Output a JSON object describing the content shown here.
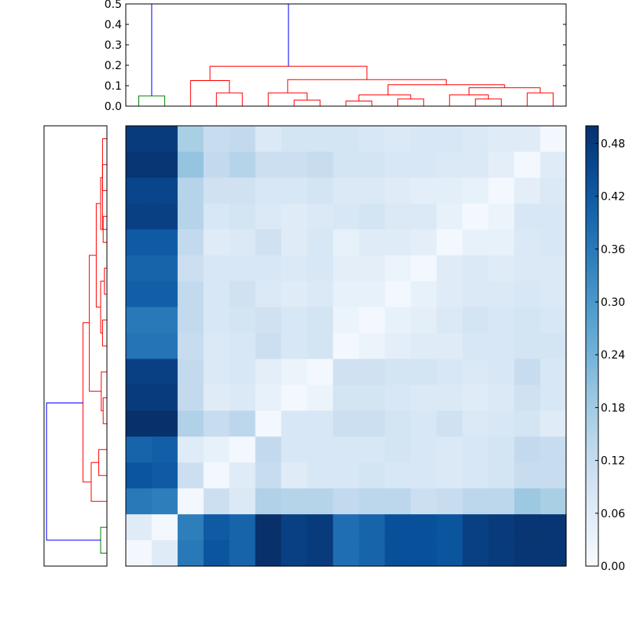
{
  "chart_data": {
    "type": "heatmap",
    "title": "",
    "colormap": "Blues",
    "matrix": [
      [
        0.48,
        0.48,
        0.17,
        0.12,
        0.13,
        0.07,
        0.09,
        0.09,
        0.09,
        0.08,
        0.07,
        0.08,
        0.08,
        0.07,
        0.06,
        0.06,
        0.01
      ],
      [
        0.49,
        0.49,
        0.2,
        0.13,
        0.15,
        0.11,
        0.11,
        0.12,
        0.09,
        0.09,
        0.08,
        0.08,
        0.07,
        0.07,
        0.05,
        0.01,
        0.06
      ],
      [
        0.46,
        0.46,
        0.15,
        0.1,
        0.1,
        0.08,
        0.08,
        0.09,
        0.07,
        0.07,
        0.06,
        0.05,
        0.05,
        0.04,
        0.01,
        0.05,
        0.07
      ],
      [
        0.47,
        0.47,
        0.15,
        0.08,
        0.09,
        0.07,
        0.06,
        0.07,
        0.08,
        0.09,
        0.07,
        0.07,
        0.04,
        0.01,
        0.03,
        0.08,
        0.08
      ],
      [
        0.42,
        0.42,
        0.13,
        0.06,
        0.07,
        0.1,
        0.06,
        0.08,
        0.04,
        0.06,
        0.06,
        0.05,
        0.01,
        0.04,
        0.04,
        0.07,
        0.08
      ],
      [
        0.4,
        0.4,
        0.11,
        0.08,
        0.08,
        0.08,
        0.07,
        0.08,
        0.05,
        0.05,
        0.03,
        0.01,
        0.06,
        0.07,
        0.06,
        0.07,
        0.07
      ],
      [
        0.41,
        0.41,
        0.13,
        0.08,
        0.1,
        0.07,
        0.06,
        0.07,
        0.04,
        0.04,
        0.01,
        0.04,
        0.06,
        0.07,
        0.07,
        0.08,
        0.07
      ],
      [
        0.36,
        0.36,
        0.13,
        0.08,
        0.09,
        0.1,
        0.08,
        0.09,
        0.03,
        0.01,
        0.04,
        0.05,
        0.07,
        0.09,
        0.08,
        0.09,
        0.08
      ],
      [
        0.37,
        0.37,
        0.12,
        0.07,
        0.08,
        0.11,
        0.08,
        0.09,
        0.01,
        0.03,
        0.05,
        0.06,
        0.06,
        0.08,
        0.08,
        0.09,
        0.09
      ],
      [
        0.47,
        0.47,
        0.13,
        0.07,
        0.08,
        0.05,
        0.03,
        0.01,
        0.1,
        0.1,
        0.09,
        0.09,
        0.08,
        0.07,
        0.08,
        0.12,
        0.08
      ],
      [
        0.48,
        0.48,
        0.13,
        0.06,
        0.07,
        0.04,
        0.01,
        0.03,
        0.09,
        0.09,
        0.08,
        0.07,
        0.07,
        0.06,
        0.07,
        0.1,
        0.08
      ],
      [
        0.5,
        0.5,
        0.16,
        0.12,
        0.14,
        0.01,
        0.08,
        0.08,
        0.11,
        0.11,
        0.09,
        0.08,
        0.1,
        0.07,
        0.08,
        0.09,
        0.06
      ],
      [
        0.4,
        0.41,
        0.06,
        0.04,
        0.01,
        0.13,
        0.08,
        0.08,
        0.08,
        0.08,
        0.09,
        0.08,
        0.07,
        0.08,
        0.09,
        0.13,
        0.12
      ],
      [
        0.43,
        0.42,
        0.11,
        0.01,
        0.06,
        0.12,
        0.06,
        0.08,
        0.08,
        0.09,
        0.08,
        0.08,
        0.07,
        0.08,
        0.09,
        0.12,
        0.12
      ],
      [
        0.36,
        0.35,
        0.01,
        0.11,
        0.07,
        0.16,
        0.15,
        0.15,
        0.13,
        0.14,
        0.14,
        0.11,
        0.12,
        0.14,
        0.14,
        0.19,
        0.17
      ],
      [
        0.06,
        0.01,
        0.35,
        0.42,
        0.4,
        0.5,
        0.47,
        0.48,
        0.38,
        0.4,
        0.44,
        0.44,
        0.43,
        0.47,
        0.48,
        0.49,
        0.49
      ],
      [
        0.01,
        0.06,
        0.36,
        0.43,
        0.4,
        0.5,
        0.47,
        0.48,
        0.38,
        0.4,
        0.44,
        0.44,
        0.43,
        0.47,
        0.48,
        0.49,
        0.49
      ]
    ],
    "vmin": 0.0,
    "vmax": 0.5,
    "colorbar": {
      "ticks": [
        "0.00",
        "0.06",
        "0.12",
        "0.18",
        "0.24",
        "0.30",
        "0.36",
        "0.42",
        "0.48"
      ]
    },
    "top_dendrogram": {
      "ylim": [
        0,
        0.5
      ],
      "yticks": [
        "0.0",
        "0.1",
        "0.2",
        "0.3",
        "0.4",
        "0.5"
      ],
      "links": [
        {
          "a": 0,
          "b": 1,
          "h": 0.05,
          "ha": 0,
          "hb": 0,
          "color": "#008000"
        },
        {
          "a": 3,
          "b": 4,
          "h": 0.065,
          "ha": 0,
          "hb": 0,
          "color": "#ff0000"
        },
        {
          "a": 2,
          "b": 3.5,
          "h": 0.125,
          "ha": 0,
          "hb": 0.065,
          "color": "#ff0000"
        },
        {
          "a": 6,
          "b": 7,
          "h": 0.03,
          "ha": 0,
          "hb": 0,
          "color": "#ff0000"
        },
        {
          "a": 5,
          "b": 6.5,
          "h": 0.065,
          "ha": 0,
          "hb": 0.03,
          "color": "#ff0000"
        },
        {
          "a": 8,
          "b": 9,
          "h": 0.025,
          "ha": 0,
          "hb": 0,
          "color": "#ff0000"
        },
        {
          "a": 10,
          "b": 11,
          "h": 0.035,
          "ha": 0,
          "hb": 0,
          "color": "#ff0000"
        },
        {
          "a": 8.5,
          "b": 10.5,
          "h": 0.055,
          "ha": 0.025,
          "hb": 0.035,
          "color": "#ff0000"
        },
        {
          "a": 13,
          "b": 14,
          "h": 0.035,
          "ha": 0,
          "hb": 0,
          "color": "#ff0000"
        },
        {
          "a": 12,
          "b": 13.5,
          "h": 0.055,
          "ha": 0,
          "hb": 0.035,
          "color": "#ff0000"
        },
        {
          "a": 15,
          "b": 16,
          "h": 0.065,
          "ha": 0,
          "hb": 0,
          "color": "#ff0000"
        },
        {
          "a": 12.75,
          "b": 15.5,
          "h": 0.09,
          "ha": 0.055,
          "hb": 0.065,
          "color": "#ff0000"
        },
        {
          "a": 9.625,
          "b": 14.125,
          "h": 0.105,
          "ha": 0.055,
          "hb": 0.09,
          "color": "#ff0000"
        },
        {
          "a": 5.75,
          "b": 11.875,
          "h": 0.13,
          "ha": 0.065,
          "hb": 0.105,
          "color": "#ff0000"
        },
        {
          "a": 2.75,
          "b": 8.8125,
          "h": 0.195,
          "ha": 0.125,
          "hb": 0.13,
          "color": "#ff0000"
        },
        {
          "a": 0.5,
          "b": 5.78,
          "h": 0.5,
          "ha": 0.05,
          "hb": 0.195,
          "color": "#0000ff"
        }
      ]
    },
    "left_dendrogram": {
      "links": [
        {
          "a": 0,
          "b": 1,
          "h": 0.05,
          "ha": 0,
          "hb": 0,
          "color": "#008000"
        },
        {
          "a": 3,
          "b": 4,
          "h": 0.065,
          "ha": 0,
          "hb": 0,
          "color": "#ff0000"
        },
        {
          "a": 2,
          "b": 3.5,
          "h": 0.125,
          "ha": 0,
          "hb": 0.065,
          "color": "#ff0000"
        },
        {
          "a": 5,
          "b": 6,
          "h": 0.03,
          "ha": 0,
          "hb": 0,
          "color": "#ff0000"
        },
        {
          "a": 5.5,
          "b": 7,
          "h": 0.045,
          "ha": 0.03,
          "hb": 0,
          "color": "#ff0000"
        },
        {
          "a": 8,
          "b": 9,
          "h": 0.035,
          "ha": 0,
          "hb": 0,
          "color": "#ff0000"
        },
        {
          "a": 10,
          "b": 11,
          "h": 0.02,
          "ha": 0,
          "hb": 0,
          "color": "#ff0000"
        },
        {
          "a": 8.5,
          "b": 10.5,
          "h": 0.05,
          "ha": 0.035,
          "hb": 0.02,
          "color": "#ff0000"
        },
        {
          "a": 12,
          "b": 13,
          "h": 0.03,
          "ha": 0,
          "hb": 0,
          "color": "#ff0000"
        },
        {
          "a": 14,
          "b": 15,
          "h": 0.035,
          "ha": 0,
          "hb": 0,
          "color": "#ff0000"
        },
        {
          "a": 12.5,
          "b": 14.5,
          "h": 0.05,
          "ha": 0.03,
          "hb": 0.035,
          "color": "#ff0000"
        },
        {
          "a": 16,
          "b": 12.5,
          "h": 0.035,
          "ha": 0,
          "hb": 0,
          "color": "#ff0000"
        },
        {
          "a": 9.5,
          "b": 13.5,
          "h": 0.085,
          "ha": 0.05,
          "hb": 0.05,
          "color": "#ff0000"
        },
        {
          "a": 6.25,
          "b": 11.5,
          "h": 0.14,
          "ha": 0.045,
          "hb": 0.085,
          "color": "#ff0000"
        },
        {
          "a": 2.75,
          "b": 8.9,
          "h": 0.19,
          "ha": 0.125,
          "hb": 0.14,
          "color": "#ff0000"
        },
        {
          "a": 0.5,
          "b": 5.8,
          "h": 0.48,
          "ha": 0.05,
          "hb": 0.19,
          "color": "#0000ff"
        }
      ]
    }
  }
}
